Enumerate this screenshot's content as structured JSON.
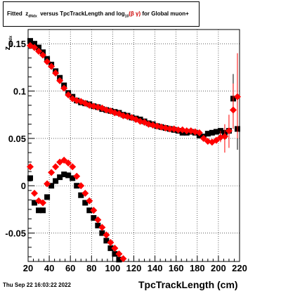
{
  "title_box": {
    "prefix": "Fitted",
    "z_symbol": "z",
    "z_sub": "dNdx",
    "middle": "versus TpcTrackLength and log",
    "log_sub": "10",
    "beta_gamma": "(β γ)",
    "suffix": "for Global muon+"
  },
  "datestamp": "Thu Sep 22 16:03:22 2022",
  "colors": {
    "series_black": "#000000",
    "series_red": "#ff0000",
    "grid": "#000000"
  },
  "chart_data": {
    "type": "scatter",
    "xlabel": "TpcTrackLength (cm)",
    "ylabel_main": "z",
    "ylabel_sub": "dNdx",
    "xlim": [
      20,
      220
    ],
    "ylim": [
      -0.08,
      0.165
    ],
    "grid": true,
    "x_ticks": [
      20,
      40,
      60,
      80,
      100,
      120,
      140,
      160,
      180,
      200,
      220
    ],
    "y_ticks": [
      -0.05,
      0,
      0.05,
      0.1,
      0.15
    ],
    "y_tick_labels": [
      "-0.05",
      "0",
      "0.05",
      "0.1",
      "0.15"
    ],
    "marker_black": "square",
    "marker_red": "diamond",
    "series": [
      {
        "color": "#000000",
        "marker": "square",
        "points": [
          [
            22,
            0.153
          ],
          [
            26,
            0.15
          ],
          [
            30,
            0.146
          ],
          [
            34,
            0.141
          ],
          [
            38,
            0.134
          ],
          [
            42,
            0.128
          ],
          [
            46,
            0.121
          ],
          [
            50,
            0.114
          ],
          [
            54,
            0.106
          ],
          [
            58,
            0.098
          ],
          [
            62,
            0.094
          ],
          [
            66,
            0.09
          ],
          [
            70,
            0.088
          ],
          [
            74,
            0.087
          ],
          [
            78,
            0.086
          ],
          [
            82,
            0.084
          ],
          [
            86,
            0.083
          ],
          [
            90,
            0.081
          ],
          [
            94,
            0.08
          ],
          [
            98,
            0.079
          ],
          [
            102,
            0.078
          ],
          [
            106,
            0.077
          ],
          [
            110,
            0.075
          ],
          [
            114,
            0.074
          ],
          [
            118,
            0.072
          ],
          [
            122,
            0.071
          ],
          [
            126,
            0.07
          ],
          [
            130,
            0.068
          ],
          [
            134,
            0.066
          ],
          [
            138,
            0.065
          ],
          [
            142,
            0.063
          ],
          [
            146,
            0.062
          ],
          [
            150,
            0.061
          ],
          [
            154,
            0.06
          ],
          [
            158,
            0.059
          ],
          [
            162,
            0.058
          ],
          [
            166,
            0.056
          ],
          [
            170,
            0.056
          ],
          [
            174,
            0.057
          ],
          [
            178,
            0.056
          ],
          [
            182,
            0.053
          ],
          [
            186,
            0.052
          ],
          [
            190,
            0.055
          ],
          [
            194,
            0.056
          ],
          [
            198,
            0.057
          ],
          [
            202,
            0.058
          ],
          [
            206,
            0.056
          ],
          [
            210,
            0.058
          ],
          [
            214,
            0.092
          ],
          [
            218,
            0.06
          ]
        ],
        "lower_points": [
          [
            22,
            0.008
          ],
          [
            26,
            -0.018
          ],
          [
            30,
            -0.026
          ],
          [
            34,
            -0.026
          ],
          [
            38,
            -0.012
          ],
          [
            42,
            0
          ],
          [
            46,
            0.005
          ],
          [
            50,
            0.009
          ],
          [
            54,
            0.012
          ],
          [
            58,
            0.011
          ],
          [
            62,
            0.008
          ],
          [
            66,
            0
          ],
          [
            70,
            -0.01
          ],
          [
            74,
            -0.018
          ],
          [
            78,
            -0.026
          ],
          [
            82,
            -0.034
          ],
          [
            86,
            -0.042
          ],
          [
            90,
            -0.05
          ],
          [
            94,
            -0.058
          ],
          [
            98,
            -0.066
          ],
          [
            102,
            -0.072
          ],
          [
            106,
            -0.078
          ]
        ],
        "error_bars": [
          [
            214,
            0.075,
            0.118
          ],
          [
            218,
            0.038,
            0.1
          ]
        ]
      },
      {
        "color": "#ff0000",
        "marker": "diamond",
        "points": [
          [
            22,
            0.148
          ],
          [
            26,
            0.146
          ],
          [
            30,
            0.142
          ],
          [
            34,
            0.138
          ],
          [
            38,
            0.131
          ],
          [
            42,
            0.126
          ],
          [
            46,
            0.119
          ],
          [
            50,
            0.111
          ],
          [
            54,
            0.103
          ],
          [
            58,
            0.096
          ],
          [
            62,
            0.092
          ],
          [
            66,
            0.09
          ],
          [
            70,
            0.089
          ],
          [
            74,
            0.087
          ],
          [
            78,
            0.085
          ],
          [
            82,
            0.084
          ],
          [
            86,
            0.083
          ],
          [
            90,
            0.082
          ],
          [
            94,
            0.08
          ],
          [
            98,
            0.079
          ],
          [
            102,
            0.077
          ],
          [
            106,
            0.076
          ],
          [
            110,
            0.074
          ],
          [
            114,
            0.073
          ],
          [
            118,
            0.072
          ],
          [
            122,
            0.07
          ],
          [
            126,
            0.068
          ],
          [
            130,
            0.067
          ],
          [
            134,
            0.065
          ],
          [
            138,
            0.064
          ],
          [
            142,
            0.063
          ],
          [
            146,
            0.062
          ],
          [
            150,
            0.061
          ],
          [
            154,
            0.06
          ],
          [
            158,
            0.06
          ],
          [
            162,
            0.059
          ],
          [
            166,
            0.059
          ],
          [
            170,
            0.058
          ],
          [
            174,
            0.058
          ],
          [
            178,
            0.057
          ],
          [
            182,
            0.056
          ],
          [
            186,
            0.05
          ],
          [
            190,
            0.047
          ],
          [
            194,
            0.046
          ],
          [
            198,
            0.048
          ],
          [
            202,
            0.051
          ],
          [
            206,
            0.052
          ],
          [
            210,
            0.058
          ],
          [
            214,
            0.08
          ],
          [
            218,
            0.094
          ]
        ],
        "lower_points": [
          [
            22,
            0.02
          ],
          [
            26,
            -0.008
          ],
          [
            30,
            -0.016
          ],
          [
            34,
            -0.018
          ],
          [
            38,
            0.002
          ],
          [
            42,
            0.014
          ],
          [
            46,
            0.02
          ],
          [
            50,
            0.025
          ],
          [
            54,
            0.027
          ],
          [
            58,
            0.024
          ],
          [
            62,
            0.02
          ],
          [
            66,
            0.01
          ],
          [
            70,
            0
          ],
          [
            74,
            -0.008
          ],
          [
            78,
            -0.016
          ],
          [
            82,
            -0.026
          ],
          [
            86,
            -0.036
          ],
          [
            90,
            -0.044
          ],
          [
            94,
            -0.052
          ],
          [
            98,
            -0.06
          ],
          [
            102,
            -0.066
          ],
          [
            106,
            -0.072
          ],
          [
            110,
            -0.077
          ]
        ],
        "error_bars": [
          [
            202,
            0.046,
            0.058
          ],
          [
            206,
            0.035,
            0.065
          ],
          [
            210,
            0.04,
            0.075
          ],
          [
            214,
            0.06,
            0.108
          ],
          [
            218,
            0.05,
            0.14
          ]
        ]
      }
    ]
  }
}
